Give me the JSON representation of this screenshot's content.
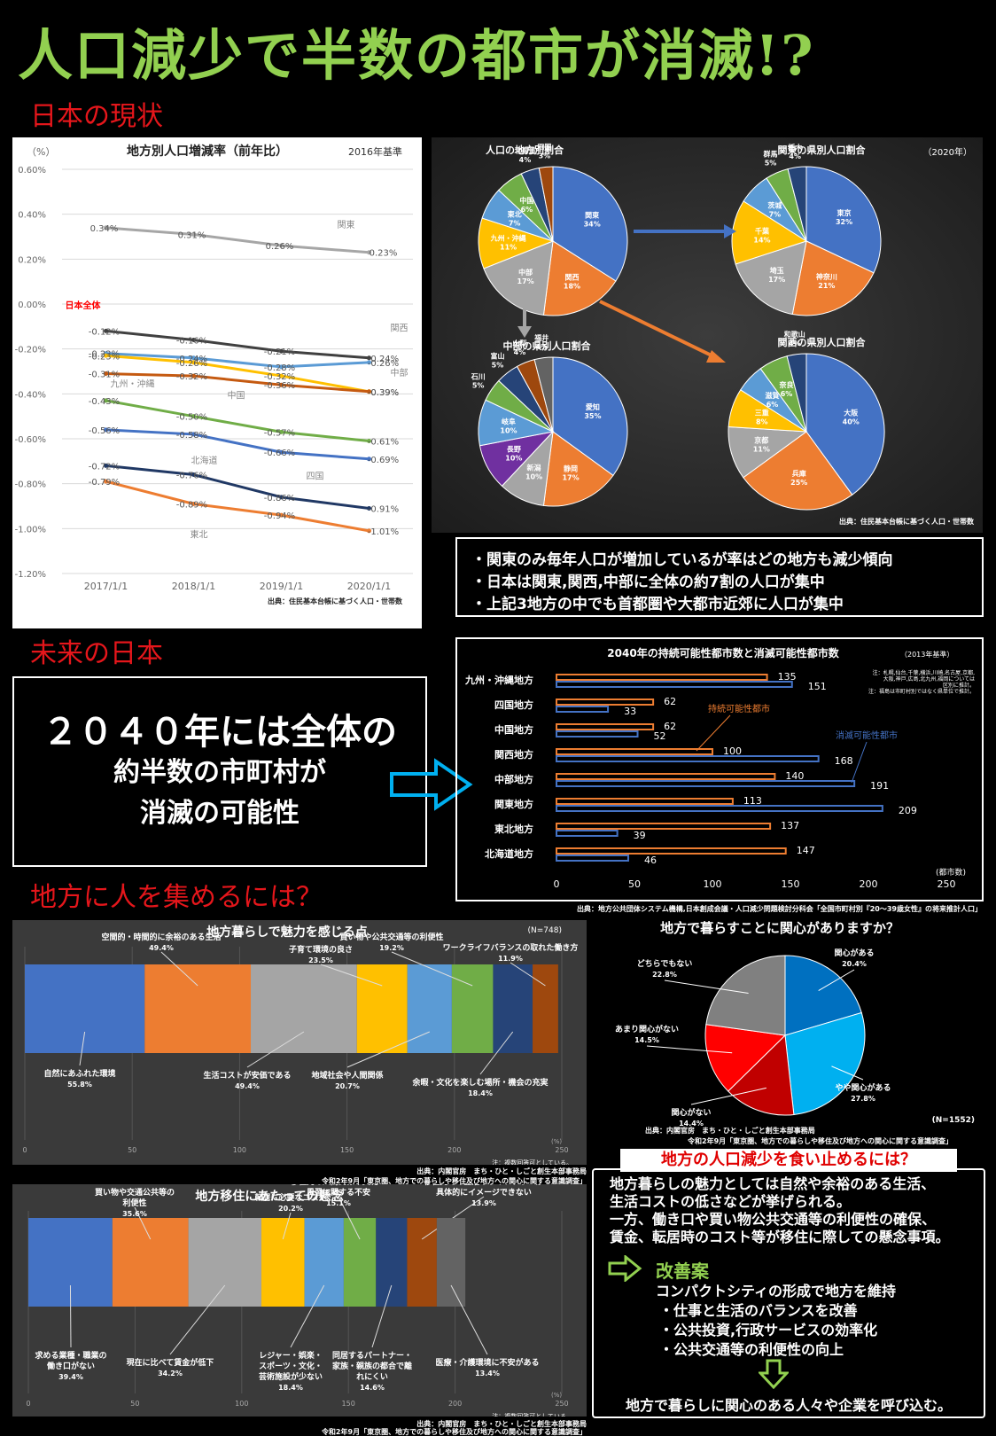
{
  "title": "人口減少で半数の都市が消滅!?",
  "sections": {
    "current": "日本の現状",
    "future": "未来の日本",
    "attract": "地方に人を集めるには？"
  },
  "line_chart": {
    "title": "地方別人口増減率（前年比）",
    "subtitle": "2016年基準",
    "unit": "（%）",
    "source": "出典：住民基本台帳に基づく人口・世帯数",
    "yticks": [
      "0.60%",
      "0.40%",
      "0.20%",
      "0.00%",
      "-0.20%",
      "-0.40%",
      "-0.60%",
      "-0.80%",
      "-1.00%",
      "-1.20%"
    ],
    "xticks": [
      "2017/1/1",
      "2018/1/1",
      "2019/1/1",
      "2020/1/1"
    ]
  },
  "pie_panel": {
    "year": "（2020年）",
    "source": "出典：住民基本台帳に基づく人口・世帯数",
    "regions_title": "人口の地方別割合",
    "kanto_title": "関東の県別人口割合",
    "chubu_title": "中部の県別人口割合",
    "kansai_title": "関西の県別人口割合"
  },
  "bullets": [
    "・関東のみ毎年人口が増加しているが率はどの地方も減少傾向",
    "・日本は関東,関西,中部に全体の約7割の人口が集中",
    "・上記3地方の中でも首都圏や大都市近郊に人口が集中"
  ],
  "future_text": [
    "２０４０年には全体の",
    "約半数の市町村が",
    "消滅の可能性"
  ],
  "bar_chart": {
    "title": "2040年の持続可能性都市数と消滅可能性都市数",
    "base": "（2013年基準）",
    "note1": "注：札幌,仙台,千葉,横浜,川崎,名古屋,京都,",
    "note2": "大阪,神戸,広島,北九州,福岡については",
    "note3": "区別に推計。",
    "note4": "注：福島は市町村別ではなく県単位で推計。",
    "label_sustain": "持続可能性都市",
    "label_vanish": "消滅可能性都市",
    "unit": "(都市数)",
    "source": "出典：地方公共団体システム機構,日本創成会議・人口減少問題検討分科会「全国市町村別『20～39歳女性』の将来推計人口」",
    "xticks": [
      "0",
      "50",
      "100",
      "150",
      "200",
      "250"
    ]
  },
  "appeal_chart": {
    "title": "地方暮らしで魅力を感じる点",
    "n": "(N=748)",
    "pct": "(%)",
    "note": "注：複数回答可としている。",
    "source1": "出典：内閣官房　まち・ひと・しごと創生本部事務局",
    "source2": "令和2年9月「東京圏、地方での暮らしや移住及び地方への関心に関する意識調査」",
    "xticks": [
      "0",
      "50",
      "100",
      "150",
      "200",
      "250"
    ]
  },
  "interest_chart": {
    "title": "地方で暮らすことに関心がありますか？",
    "n": "(N=1552)",
    "source1": "出典：内閣官房　まち・ひと・しごと創生本部事務局",
    "source2": "令和2年9月「東京圏、地方での暮らしや移住及び地方への関心に関する意識調査」"
  },
  "concern_chart": {
    "title": "地方移住にあたっての懸念",
    "pct": "(%)",
    "note": "注：複数回答可としている。",
    "source1": "出典：内閣官房　まち・ひと・しごと創生本部事務局",
    "source2": "令和2年9月「東京圏、地方での暮らしや移住及び地方への関心に関する意識調査」",
    "xticks": [
      "0",
      "50",
      "100",
      "150",
      "200",
      "250"
    ]
  },
  "summary": {
    "title": "地方の人口減少を食い止めるには？",
    "lines": [
      "地方暮らしの魅力としては自然や余裕のある生活、",
      "生活コストの低さなどが挙げられる。",
      "一方、働き口や買い物公共交通等の利便性の確保、",
      "賃金、転居時のコスト等が移住に際しての懸念事項。"
    ],
    "improve": "改善案",
    "plan": "コンパクトシティの形成で地方を維持",
    "items": [
      "・仕事と生活のバランスを改善",
      "・公共投資,行政サービスの効率化",
      "・公共交通等の利便性の向上"
    ],
    "conclusion": "地方で暮らしに関心のある人々や企業を呼び込む。"
  },
  "chart_data": [
    {
      "type": "line",
      "title": "地方別人口増減率（前年比）",
      "x": [
        "2017/1/1",
        "2018/1/1",
        "2019/1/1",
        "2020/1/1"
      ],
      "ylim": [
        -1.2,
        0.6
      ],
      "ylabel": "（%）",
      "series": [
        {
          "name": "関東",
          "color": "#a6a6a6",
          "values": [
            0.34,
            0.31,
            0.26,
            0.23
          ],
          "labels": [
            "0.34%",
            "0.31%",
            "0.26%",
            "0.23%"
          ]
        },
        {
          "name": "日本全体",
          "color": "#404040",
          "values": [
            -0.12,
            -0.16,
            -0.21,
            -0.24
          ],
          "labels": [
            "-0.12%",
            "-0.16%",
            "-0.21%",
            "-0.24%"
          ]
        },
        {
          "name": "関西",
          "color": "#5b9bd5",
          "values": [
            -0.22,
            -0.24,
            -0.28,
            -0.26
          ],
          "labels": [
            "-0.22%",
            "-0.24%",
            "-0.28%",
            "-0.26%"
          ]
        },
        {
          "name": "九州・沖縄",
          "color": "#ffc000",
          "values": [
            -0.23,
            -0.26,
            -0.32,
            -0.39
          ],
          "labels": [
            "-0.23%",
            "-0.26%",
            "-0.32%",
            "-0.39%"
          ]
        },
        {
          "name": "中部",
          "color": "#c55a11",
          "values": [
            -0.31,
            -0.32,
            -0.36,
            -0.39
          ],
          "labels": [
            "-0.31%",
            "-0.32%",
            "-0.36%",
            "-0.39%"
          ]
        },
        {
          "name": "中国",
          "color": "#70ad47",
          "values": [
            -0.43,
            -0.5,
            -0.57,
            -0.61
          ],
          "labels": [
            "-0.43%",
            "-0.50%",
            "-0.57%",
            "-0.61%"
          ]
        },
        {
          "name": "北海道",
          "color": "#4472c4",
          "values": [
            -0.56,
            -0.58,
            -0.66,
            -0.69
          ],
          "labels": [
            "-0.56%",
            "-0.58%",
            "-0.66%",
            "-0.69%"
          ]
        },
        {
          "name": "四国",
          "color": "#203864",
          "values": [
            -0.72,
            -0.76,
            -0.86,
            -0.91
          ],
          "labels": [
            "-0.72%",
            "-0.76%",
            "-0.86%",
            "-0.91%"
          ]
        },
        {
          "name": "東北",
          "color": "#ed7d31",
          "values": [
            -0.79,
            -0.89,
            -0.94,
            -1.01
          ],
          "labels": [
            "-0.79%",
            "-0.89%",
            "-0.94%",
            "-1.01%"
          ]
        }
      ]
    },
    {
      "type": "pie",
      "title": "人口の地方別割合",
      "slices": [
        {
          "label": "関東",
          "value": 34,
          "color": "#4472c4"
        },
        {
          "label": "関西",
          "value": 18,
          "color": "#ed7d31"
        },
        {
          "label": "中部",
          "value": 17,
          "color": "#a5a5a5"
        },
        {
          "label": "九州・沖縄",
          "value": 11,
          "color": "#ffc000"
        },
        {
          "label": "東北",
          "value": 7,
          "color": "#5b9bd5"
        },
        {
          "label": "中国",
          "value": 6,
          "color": "#70ad47"
        },
        {
          "label": "北海道",
          "value": 4,
          "color": "#264478"
        },
        {
          "label": "四国",
          "value": 3,
          "color": "#9e480e"
        }
      ]
    },
    {
      "type": "pie",
      "title": "関東の県別人口割合",
      "slices": [
        {
          "label": "東京",
          "value": 32,
          "color": "#4472c4"
        },
        {
          "label": "神奈川",
          "value": 21,
          "color": "#ed7d31"
        },
        {
          "label": "埼玉",
          "value": 17,
          "color": "#a5a5a5"
        },
        {
          "label": "千葉",
          "value": 14,
          "color": "#ffc000"
        },
        {
          "label": "茨城",
          "value": 7,
          "color": "#5b9bd5"
        },
        {
          "label": "群馬",
          "value": 5,
          "color": "#70ad47"
        },
        {
          "label": "栃木",
          "value": 4,
          "color": "#264478"
        }
      ]
    },
    {
      "type": "pie",
      "title": "中部の県別人口割合",
      "slices": [
        {
          "label": "愛知",
          "value": 35,
          "color": "#4472c4"
        },
        {
          "label": "静岡",
          "value": 17,
          "color": "#ed7d31"
        },
        {
          "label": "新潟",
          "value": 10,
          "color": "#a5a5a5"
        },
        {
          "label": "長野",
          "value": 10,
          "color": "#7030a0"
        },
        {
          "label": "岐阜",
          "value": 10,
          "color": "#5b9bd5"
        },
        {
          "label": "石川",
          "value": 5,
          "color": "#70ad47"
        },
        {
          "label": "富山",
          "value": 5,
          "color": "#264478"
        },
        {
          "label": "山梨",
          "value": 4,
          "color": "#9e480e"
        },
        {
          "label": "福井",
          "value": 4,
          "color": "#636363"
        }
      ]
    },
    {
      "type": "pie",
      "title": "関西の県別人口割合",
      "slices": [
        {
          "label": "大阪",
          "value": 40,
          "color": "#4472c4"
        },
        {
          "label": "兵庫",
          "value": 25,
          "color": "#ed7d31"
        },
        {
          "label": "京都",
          "value": 11,
          "color": "#a5a5a5"
        },
        {
          "label": "三重",
          "value": 8,
          "color": "#ffc000"
        },
        {
          "label": "滋賀",
          "value": 6,
          "color": "#5b9bd5"
        },
        {
          "label": "奈良",
          "value": 6,
          "color": "#70ad47"
        },
        {
          "label": "和歌山",
          "value": 4,
          "color": "#264478"
        }
      ]
    },
    {
      "type": "bar",
      "title": "2040年の持続可能性都市数と消滅可能性都市数",
      "categories": [
        "九州・沖縄地方",
        "四国地方",
        "中国地方",
        "関西地方",
        "中部地方",
        "関東地方",
        "東北地方",
        "北海道地方"
      ],
      "series": [
        {
          "name": "持続可能性都市",
          "color": "#ed7d31",
          "values": [
            135,
            62,
            62,
            100,
            140,
            113,
            137,
            147
          ]
        },
        {
          "name": "消滅可能性都市",
          "color": "#4472c4",
          "values": [
            151,
            33,
            52,
            168,
            191,
            209,
            39,
            46
          ]
        }
      ],
      "xlim": [
        0,
        250
      ]
    },
    {
      "type": "bar",
      "title": "地方暮らしで魅力を感じる点",
      "stacked": true,
      "xlim": [
        0,
        250
      ],
      "segments": [
        {
          "label": "自然にあふれた環境",
          "value": 55.8,
          "pct": "55.8%",
          "color": "#4472c4",
          "pos": "below"
        },
        {
          "label": "空間的・時間的に余裕のある生活",
          "value": 49.4,
          "pct": "49.4%",
          "color": "#ed7d31",
          "pos": "above"
        },
        {
          "label": "生活コストが安価である",
          "value": 49.4,
          "pct": "49.4%",
          "color": "#a5a5a5",
          "pos": "below"
        },
        {
          "label": "子育て環境の良さ",
          "value": 23.5,
          "pct": "23.5%",
          "color": "#ffc000",
          "pos": "above"
        },
        {
          "label": "地域社会や人間関係",
          "value": 20.7,
          "pct": "20.7%",
          "color": "#5b9bd5",
          "pos": "below"
        },
        {
          "label": "買い物や公共交通等の利便性",
          "value": 19.2,
          "pct": "19.2%",
          "color": "#70ad47",
          "pos": "above"
        },
        {
          "label": "余暇・文化を楽しむ場所・機会の充実",
          "value": 18.4,
          "pct": "18.4%",
          "color": "#264478",
          "pos": "below"
        },
        {
          "label": "ワークライフバランスの取れた働き方",
          "value": 11.9,
          "pct": "11.9%",
          "color": "#9e480e",
          "pos": "above"
        }
      ]
    },
    {
      "type": "pie",
      "title": "地方で暮らすことに関心がありますか？",
      "slices": [
        {
          "label": "関心がある",
          "value": 20.4,
          "pct": "20.4%",
          "color": "#0070c0"
        },
        {
          "label": "やや関心がある",
          "value": 27.8,
          "pct": "27.8%",
          "color": "#00b0f0"
        },
        {
          "label": "関心がない",
          "value": 14.4,
          "pct": "14.4%",
          "color": "#c00000"
        },
        {
          "label": "あまり関心がない",
          "value": 14.5,
          "pct": "14.5%",
          "color": "#ff0000"
        },
        {
          "label": "どちらでもない",
          "value": 22.8,
          "pct": "22.8%",
          "color": "#808080"
        }
      ]
    },
    {
      "type": "bar",
      "title": "地方移住にあたっての懸念",
      "stacked": true,
      "xlim": [
        0,
        250
      ],
      "segments": [
        {
          "label": "求める業種・職業の働き口がない",
          "value": 39.4,
          "pct": "39.4%",
          "color": "#4472c4",
          "pos": "below"
        },
        {
          "label": "買い物や交通公共等の利便性",
          "value": 35.6,
          "pct": "35.6%",
          "color": "#ed7d31",
          "pos": "above"
        },
        {
          "label": "現在に比べて賃金が低下",
          "value": 34.2,
          "pct": "34.2%",
          "color": "#a5a5a5",
          "pos": "below"
        },
        {
          "label": "転居に必要なコスト",
          "value": 20.2,
          "pct": "20.2%",
          "color": "#ffc000",
          "pos": "above"
        },
        {
          "label": "レジャー・娯楽・スポーツ・文化・芸術施設が少ない",
          "value": 18.4,
          "pct": "18.4%",
          "color": "#5b9bd5",
          "pos": "below"
        },
        {
          "label": "移住先の人間関係や文化・風習に関する不安",
          "value": 15.1,
          "pct": "15.1%",
          "color": "#70ad47",
          "pos": "above"
        },
        {
          "label": "同居するパートナー・家族・親族の都合で離れにくい",
          "value": 14.6,
          "pct": "14.6%",
          "color": "#264478",
          "pos": "below"
        },
        {
          "label": "移住先での生活やライフプランが具体的にイメージできない",
          "value": 13.9,
          "pct": "13.9%",
          "color": "#9e480e",
          "pos": "above"
        },
        {
          "label": "医療・介護環境に不安がある",
          "value": 13.4,
          "pct": "13.4%",
          "color": "#636363",
          "pos": "below"
        }
      ]
    }
  ]
}
